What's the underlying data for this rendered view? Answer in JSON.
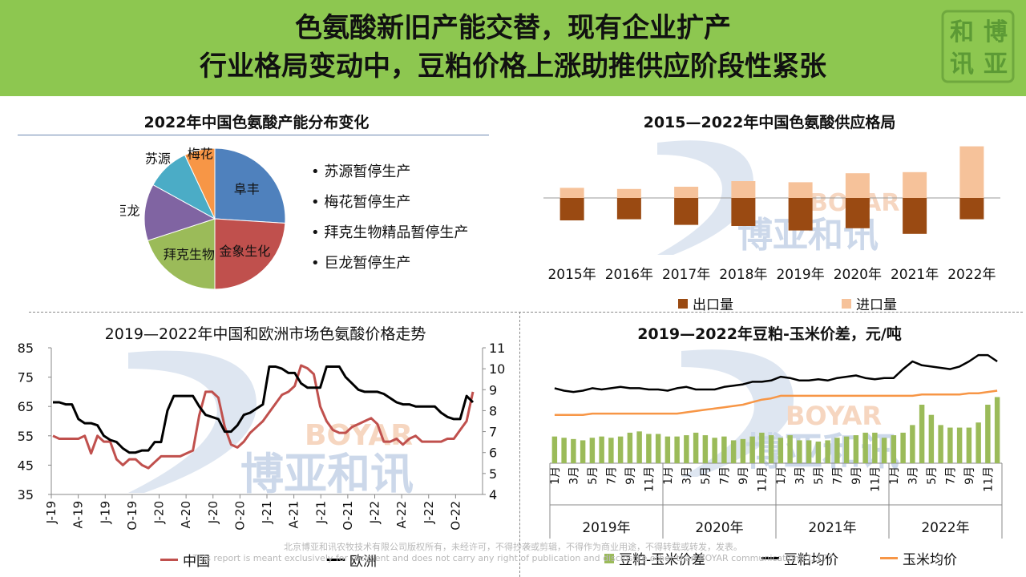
{
  "header": {
    "title_line1": "色氨酸新旧产能交替，现有企业扩产",
    "title_line2": "行业格局变动中，豆粕价格上涨助推供应阶段性紧张",
    "logo_chars": [
      "博",
      "亚",
      "和",
      "讯"
    ]
  },
  "watermark": {
    "brand_en": "BOYAR",
    "brand_cn": "博亚和讯"
  },
  "colors": {
    "header_bg": "#8dc750",
    "export": "#9a4a12",
    "import": "#f6c29a",
    "china": "#c0504d",
    "europe": "#000000",
    "spread": "#9bbb59",
    "soy": "#000000",
    "corn": "#f79646"
  },
  "pie": {
    "title": "2022年中国色氨酸产能分布变化",
    "chart_data": {
      "type": "pie",
      "labels": [
        "阜丰",
        "金象生化",
        "拜克生物",
        "巨龙",
        "苏源",
        "梅花"
      ],
      "values": [
        26,
        24,
        20,
        13,
        10,
        7
      ],
      "colors": [
        "#4f81bd",
        "#c0504d",
        "#9bbb59",
        "#8064a2",
        "#4bacc6",
        "#f79646"
      ]
    },
    "bullets": [
      "苏源暂停生产",
      "梅花暂停生产",
      "拜克生物精品暂停生产",
      "巨龙暂停生产"
    ]
  },
  "supply": {
    "title": "2015—2022年中国色氨酸供应格局",
    "chart_data": {
      "type": "bar",
      "categories": [
        "2015年",
        "2016年",
        "2017年",
        "2018年",
        "2019年",
        "2020年",
        "2021年",
        "2022年"
      ],
      "series": [
        {
          "name": "出口量",
          "values": [
            -2.0,
            -1.9,
            -2.4,
            -2.5,
            -2.9,
            -2.7,
            -3.2,
            -1.9
          ]
        },
        {
          "name": "进口量",
          "values": [
            0.9,
            0.8,
            1.0,
            1.5,
            1.4,
            2.2,
            2.3,
            4.6
          ]
        }
      ],
      "ylim": [
        -3.5,
        5.0
      ]
    }
  },
  "price": {
    "title": "2019—2022年中国和欧洲市场色氨酸价格走势",
    "chart_data": {
      "type": "line",
      "x_ticks": [
        "J-19",
        "A-19",
        "J-19",
        "O-19",
        "J-20",
        "A-20",
        "J-20",
        "O-20",
        "J-21",
        "A-21",
        "J-21",
        "O-21",
        "J-22",
        "A-22",
        "J-22",
        "O-22"
      ],
      "left_axis": {
        "ticks": [
          "85",
          "75",
          "65",
          "55",
          "45",
          "35"
        ],
        "range": [
          35,
          85
        ]
      },
      "right_axis": {
        "ticks": [
          "11",
          "10",
          "9",
          "8",
          "7",
          "6",
          "5",
          "4"
        ],
        "range": [
          4,
          11
        ]
      },
      "series": [
        {
          "name": "中国",
          "axis": "left",
          "values": [
            55,
            54,
            54,
            54,
            54,
            55,
            49,
            55,
            53,
            53,
            47,
            45,
            47,
            47,
            45,
            44,
            46,
            48,
            48,
            48,
            48,
            49,
            50,
            62,
            70,
            70,
            68,
            58,
            52,
            51,
            53,
            56,
            58,
            60,
            63,
            66,
            69,
            70,
            72,
            79,
            78,
            76,
            65,
            60,
            57,
            56,
            56,
            58,
            59,
            60,
            61,
            59,
            53,
            53,
            54,
            52,
            54,
            55,
            53,
            53,
            53,
            53,
            54,
            54,
            57,
            60,
            70
          ]
        },
        {
          "name": "欧洲",
          "axis": "right",
          "values": [
            8.4,
            8.4,
            8.3,
            8.3,
            7.6,
            7.4,
            7.4,
            7.3,
            6.8,
            6.6,
            6.5,
            6.2,
            6.0,
            6.0,
            6.1,
            6.1,
            6.5,
            6.5,
            8.0,
            8.7,
            8.7,
            8.7,
            8.7,
            8.2,
            7.8,
            7.7,
            7.6,
            7.0,
            7.0,
            7.3,
            7.8,
            7.9,
            8.1,
            8.3,
            10.1,
            10.1,
            10.0,
            9.8,
            9.8,
            9.3,
            9.1,
            9.1,
            9.1,
            10.1,
            10.1,
            10.1,
            9.6,
            9.3,
            9.0,
            8.9,
            8.9,
            8.9,
            8.8,
            8.6,
            8.4,
            8.3,
            8.3,
            8.2,
            8.2,
            8.2,
            8.2,
            7.9,
            7.7,
            7.6,
            7.6,
            8.7,
            8.4
          ]
        }
      ]
    }
  },
  "spread": {
    "title": "2019—2022年豆粕-玉米价差，元/吨",
    "chart_data": {
      "type": "bar+line",
      "years": [
        "2019年",
        "2020年",
        "2021年",
        "2022年"
      ],
      "month_labels": [
        "1月",
        "3月",
        "5月",
        "7月",
        "9月",
        "11月"
      ],
      "ylim": [
        0,
        4600
      ],
      "series": [
        {
          "name": "豆粕-玉米价差",
          "type": "bar",
          "values": [
            1050,
            1000,
            950,
            900,
            1000,
            1050,
            1000,
            1050,
            1200,
            1250,
            1150,
            1150,
            1050,
            1050,
            1100,
            1200,
            1100,
            1000,
            1050,
            900,
            950,
            1050,
            1200,
            1100,
            1000,
            1100,
            900,
            900,
            850,
            900,
            1000,
            1050,
            1100,
            1200,
            1200,
            1000,
            1100,
            1200,
            1500,
            2300,
            1900,
            1500,
            1400,
            1400,
            1400,
            1600,
            2300,
            2600
          ]
        },
        {
          "name": "豆粕均价",
          "type": "line",
          "values": [
            2950,
            2850,
            2800,
            2850,
            2950,
            2900,
            2950,
            3000,
            2950,
            2950,
            2900,
            2900,
            2850,
            2950,
            3000,
            2900,
            2900,
            2900,
            3000,
            3050,
            3100,
            3200,
            3200,
            3250,
            3400,
            3350,
            3250,
            3250,
            3300,
            3250,
            3350,
            3400,
            3450,
            3350,
            3300,
            3350,
            3350,
            3700,
            4000,
            3850,
            3800,
            3750,
            3700,
            3800,
            4000,
            4250,
            4250,
            4000
          ]
        },
        {
          "name": "玉米均价",
          "type": "line",
          "values": [
            1900,
            1900,
            1900,
            1900,
            1950,
            1950,
            1950,
            1950,
            1950,
            1950,
            1950,
            1950,
            1950,
            1950,
            2000,
            2050,
            2100,
            2150,
            2200,
            2250,
            2300,
            2400,
            2500,
            2550,
            2650,
            2650,
            2650,
            2650,
            2650,
            2650,
            2650,
            2650,
            2650,
            2650,
            2650,
            2650,
            2650,
            2650,
            2650,
            2700,
            2700,
            2700,
            2700,
            2700,
            2750,
            2750,
            2800,
            2850
          ]
        }
      ]
    }
  },
  "footer": {
    "line1": "北京博亚和讯农牧技术有限公司版权所有，未经许可，不得抄袭或剪辑，不得作为商业用途，不得转载或转发，发表。",
    "line2": "This report is meant exclusively for recipient and does not carry any right of publication and disclosure other than BOYAR communication(s). 177"
  }
}
